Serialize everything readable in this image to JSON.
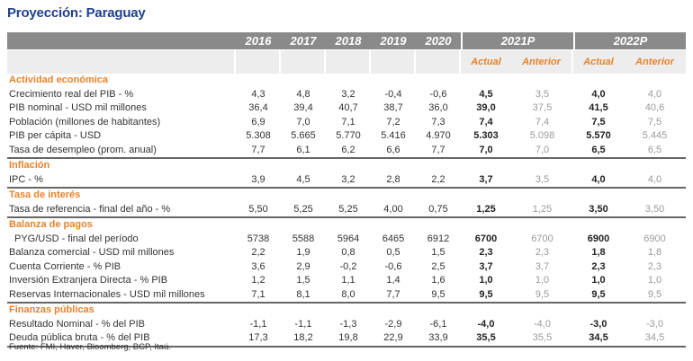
{
  "title": "Proyección: Paraguay",
  "header": {
    "years": [
      "2016",
      "2017",
      "2018",
      "2019",
      "2020"
    ],
    "groups": [
      "2021P",
      "2022P"
    ],
    "sub": [
      "Actual",
      "Anterior",
      "Actual",
      "Anterior"
    ]
  },
  "colors": {
    "title": "#1f3f8f",
    "accent": "#e8822a",
    "header_bg": "#8a8a8a"
  },
  "sections": [
    {
      "name": "Actividad económica",
      "rows": [
        {
          "label": "Crecimiento real del PIB - %",
          "values": [
            "4,3",
            "4,8",
            "3,2",
            "-0,4",
            "-0,6",
            "4,5",
            "3,5",
            "4,0",
            "4,0"
          ]
        },
        {
          "label": "PIB nominal - USD mil millones",
          "values": [
            "36,4",
            "39,4",
            "40,7",
            "38,7",
            "36,0",
            "39,0",
            "37,5",
            "41,5",
            "40,6"
          ]
        },
        {
          "label": "Población (millones de habitantes)",
          "values": [
            "6,9",
            "7,0",
            "7,1",
            "7,2",
            "7,3",
            "7,4",
            "7,4",
            "7,5",
            "7,5"
          ]
        },
        {
          "label": "PIB per cápita - USD",
          "values": [
            "5.308",
            "5.665",
            "5.770",
            "5.416",
            "4.970",
            "5.303",
            "5.098",
            "5.570",
            "5.445"
          ]
        },
        {
          "label": "Tasa de desempleo (prom. anual)",
          "values": [
            "7,7",
            "6,1",
            "6,2",
            "6,6",
            "7,7",
            "7,0",
            "7,0",
            "6,5",
            "6,5"
          ]
        }
      ]
    },
    {
      "name": "Inflación",
      "indent": true,
      "rows": [
        {
          "label": "IPC - %",
          "values": [
            "3,9",
            "4,5",
            "3,2",
            "2,8",
            "2,2",
            "3,7",
            "3,5",
            "4,0",
            "4,0"
          ]
        }
      ]
    },
    {
      "name": "Tasa de interés",
      "rows": [
        {
          "label": "Tasa de referencia  - final del año - %",
          "values": [
            "5,50",
            "5,25",
            "5,25",
            "4,00",
            "0,75",
            "1,25",
            "1,25",
            "3,50",
            "3,50"
          ]
        }
      ]
    },
    {
      "name": "Balanza de pagos",
      "rows": [
        {
          "label": "PYG/USD - final del período",
          "indent": true,
          "values": [
            "5738",
            "5588",
            "5964",
            "6465",
            "6912",
            "6700",
            "6700",
            "6900",
            "6900"
          ]
        },
        {
          "label": "Balanza comercial - USD mil millones",
          "values": [
            "2,2",
            "1,9",
            "0,8",
            "0,5",
            "1,5",
            "2,3",
            "2,3",
            "1,8",
            "1,8"
          ]
        },
        {
          "label": "Cuenta Corriente - % PIB",
          "values": [
            "3,6",
            "2,9",
            "-0,2",
            "-0,6",
            "2,5",
            "3,7",
            "3,7",
            "2,3",
            "2,3"
          ]
        },
        {
          "label": "Inversión Extranjera Directa - % PIB",
          "values": [
            "1,2",
            "1,5",
            "1,1",
            "1,4",
            "1,6",
            "1,0",
            "1,0",
            "1,0",
            "1,0"
          ]
        },
        {
          "label": "Reservas Internacionales - USD mil millones",
          "values": [
            "7,1",
            "8,1",
            "8,0",
            "7,7",
            "9,5",
            "9,5",
            "9,5",
            "9,5",
            "9,5"
          ]
        }
      ]
    },
    {
      "name": "Finanzas públicas",
      "indent": true,
      "rows": [
        {
          "label": "Resultado Nominal - % del PIB",
          "values": [
            "-1,1",
            "-1,1",
            "-1,3",
            "-2,9",
            "-6,1",
            "-4,0",
            "-4,0",
            "-3,0",
            "-3,0"
          ]
        },
        {
          "label": "Deuda pública bruta - % del PIB",
          "values": [
            "17,3",
            "18,2",
            "19,8",
            "22,9",
            "33,9",
            "35,5",
            "35,5",
            "34,5",
            "34,5"
          ]
        }
      ]
    }
  ],
  "footer": "Fuente: FMI, Haver, Bloomberg, BCP, Itaú."
}
